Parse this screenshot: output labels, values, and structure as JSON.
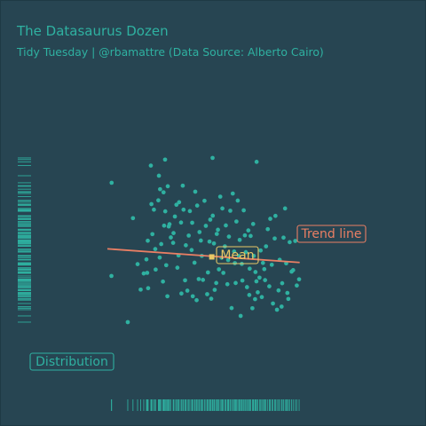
{
  "colors": {
    "background": "#274552",
    "accent": "#2fb1a1",
    "trend": "#ea7f64",
    "mean": "#e8c866",
    "title": "#2fb1a1"
  },
  "chart_data": {
    "type": "scatter",
    "title": "The Datasaurus Dozen",
    "subtitle": "Tidy Tuesday | @rbamattre (Data Source: Alberto Cairo)",
    "xlabel": "",
    "ylabel": "",
    "xlim": [
      0,
      120
    ],
    "ylim": [
      0,
      120
    ],
    "grid": false,
    "series": [
      {
        "name": "",
        "points": [
          [
            2.2,
            83.6
          ],
          [
            30.0,
            94.8
          ],
          [
            54.7,
            95.6
          ],
          [
            77.6,
            93.7
          ],
          [
            2.1,
            38.6
          ],
          [
            10.6,
            16.3
          ],
          [
            13.3,
            66.5
          ],
          [
            15.7,
            44.3
          ],
          [
            18.9,
            39.8
          ],
          [
            20.3,
            46.6
          ],
          [
            21.2,
            32.7
          ],
          [
            21.0,
            55.6
          ],
          [
            22.6,
            91.9
          ],
          [
            22.9,
            73.3
          ],
          [
            24.2,
            70.6
          ],
          [
            24.9,
            51.6
          ],
          [
            26.5,
            75.1
          ],
          [
            27.2,
            47.5
          ],
          [
            28.0,
            54.0
          ],
          [
            29.2,
            79.0
          ],
          [
            29.5,
            62.9
          ],
          [
            30.1,
            69.8
          ],
          [
            31.2,
            28.8
          ],
          [
            31.9,
            62.5
          ],
          [
            32.3,
            63.6
          ],
          [
            33.0,
            57.2
          ],
          [
            34.2,
            54.6
          ],
          [
            35.1,
            67.3
          ],
          [
            36.4,
            42.6
          ],
          [
            37.3,
            74.2
          ],
          [
            38.5,
            30.1
          ],
          [
            39.6,
            70.6
          ],
          [
            40.8,
            53.4
          ],
          [
            41.6,
            31.5
          ],
          [
            42.9,
            69.9
          ],
          [
            43.8,
            51.1
          ],
          [
            44.4,
            28.8
          ],
          [
            45.7,
            79.3
          ],
          [
            46.4,
            26.9
          ],
          [
            47.5,
            37.1
          ],
          [
            48.6,
            55.7
          ],
          [
            49.7,
            36.7
          ],
          [
            51.2,
            62.8
          ],
          [
            52.3,
            40.3
          ],
          [
            53.1,
            55.2
          ],
          [
            54.0,
            27.6
          ],
          [
            54.8,
            67.7
          ],
          [
            55.4,
            54.3
          ],
          [
            56.6,
            35.2
          ],
          [
            57.5,
            60.9
          ],
          [
            58.7,
            76.9
          ],
          [
            59.4,
            47.4
          ],
          [
            60.3,
            40.1
          ],
          [
            61.1,
            52.9
          ],
          [
            62.4,
            34.6
          ],
          [
            63.2,
            57.6
          ],
          [
            64.6,
            23.1
          ],
          [
            65.2,
            78.4
          ],
          [
            65.9,
            50.4
          ],
          [
            66.7,
            35.2
          ],
          [
            67.8,
            75.0
          ],
          [
            68.8,
            56.0
          ],
          [
            69.3,
            19.3
          ],
          [
            70.2,
            36.4
          ],
          [
            71.5,
            58.2
          ],
          [
            72.6,
            33.2
          ],
          [
            73.3,
            60.6
          ],
          [
            74.5,
            57.9
          ],
          [
            75.4,
            23.0
          ],
          [
            76.1,
            48.3
          ],
          [
            77.5,
            36.0
          ],
          [
            78.2,
            30.7
          ],
          [
            79.1,
            37.8
          ],
          [
            80.3,
            28.4
          ],
          [
            81.6,
            41.9
          ],
          [
            82.5,
            52.9
          ],
          [
            84.7,
            66.2
          ],
          [
            86.1,
            25.3
          ],
          [
            87.4,
            67.6
          ],
          [
            89.0,
            31.6
          ],
          [
            90.6,
            23.8
          ],
          [
            91.6,
            57.1
          ],
          [
            93.0,
            44.7
          ],
          [
            94.1,
            27.5
          ],
          [
            95.8,
            40.7
          ],
          [
            97.7,
            55.5
          ],
          [
            99.7,
            37.0
          ],
          [
            17.3,
            32.0
          ],
          [
            20.7,
            40.1
          ],
          [
            26.8,
            87.0
          ],
          [
            23.4,
            58.8
          ],
          [
            25.1,
            41.7
          ],
          [
            27.4,
            80.5
          ],
          [
            28.9,
            35.9
          ],
          [
            30.6,
            43.8
          ],
          [
            31.4,
            81.9
          ],
          [
            34.4,
            59.3
          ],
          [
            35.9,
            73.0
          ],
          [
            37.0,
            48.5
          ],
          [
            38.3,
            64.4
          ],
          [
            39.2,
            82.2
          ],
          [
            40.4,
            36.5
          ],
          [
            42.3,
            58.1
          ],
          [
            44.1,
            64.3
          ],
          [
            45.3,
            45.0
          ],
          [
            46.7,
            72.6
          ],
          [
            47.9,
            59.8
          ],
          [
            49.1,
            48.3
          ],
          [
            50.5,
            74.9
          ],
          [
            51.9,
            29.8
          ],
          [
            53.5,
            65.8
          ],
          [
            55.8,
            31.9
          ],
          [
            56.9,
            58.9
          ],
          [
            58.0,
            41.8
          ],
          [
            59.8,
            71.2
          ],
          [
            61.6,
            63.0
          ],
          [
            62.8,
            46.3
          ],
          [
            63.9,
            70.1
          ],
          [
            66.3,
            44.8
          ],
          [
            67.1,
            64.9
          ],
          [
            68.4,
            48.2
          ],
          [
            69.9,
            44.4
          ],
          [
            70.9,
            70.3
          ],
          [
            72.0,
            50.1
          ],
          [
            74.0,
            42.1
          ],
          [
            75.8,
            63.7
          ],
          [
            76.8,
            27.4
          ],
          [
            79.7,
            50.9
          ],
          [
            80.9,
            44.9
          ],
          [
            82.0,
            36.6
          ],
          [
            83.4,
            61.2
          ],
          [
            84.2,
            33.6
          ],
          [
            85.5,
            44.0
          ],
          [
            87.0,
            56.7
          ],
          [
            88.2,
            22.3
          ],
          [
            89.6,
            46.4
          ],
          [
            90.9,
            35.1
          ],
          [
            92.4,
            71.2
          ],
          [
            93.6,
            30.4
          ],
          [
            94.8,
            54.9
          ],
          [
            96.6,
            41.4
          ],
          [
            98.5,
            34.0
          ],
          [
            73.8,
            29.4
          ],
          [
            77.0,
            40.5
          ]
        ]
      }
    ],
    "annotations": [
      "Trend line",
      "Mean",
      "Distribution"
    ],
    "mean": [
      54.3,
      47.8
    ],
    "trend": {
      "x": [
        0,
        100
      ],
      "y": [
        51.7,
        45.1
      ]
    }
  }
}
